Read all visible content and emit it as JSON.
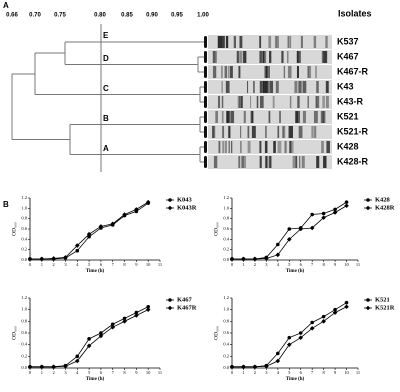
{
  "panel_a": {
    "label": "A",
    "scale_ticks": [
      "0.66",
      "0.70",
      "0.75",
      "0.80",
      "0.85",
      "0.90",
      "0.95",
      "1.00"
    ],
    "nodes": [
      "E",
      "D",
      "C",
      "B",
      "A"
    ],
    "isolates_header": "Isolates",
    "isolates": [
      "K537",
      "K467",
      "K467-R",
      "K43",
      "K43-R",
      "K521",
      "K521-R",
      "K428",
      "K428-R"
    ]
  },
  "panel_b_label": "B",
  "chart_data": [
    {
      "type": "line",
      "x_label": "Time (h)",
      "y_label": "OD₆₀₀",
      "x": [
        0,
        1,
        2,
        3,
        4,
        5,
        6,
        7,
        8,
        9,
        10
      ],
      "xlim": [
        0,
        11
      ],
      "xticks": [
        0,
        1,
        2,
        3,
        4,
        5,
        6,
        7,
        8,
        9,
        10,
        11
      ],
      "ylim": [
        0,
        1.2
      ],
      "yticks": [
        {
          "value": 0,
          "label": "0.0"
        },
        0.2,
        0.4,
        0.6,
        0.8,
        {
          "value": 1,
          "label": "1.0"
        },
        1.2
      ],
      "series": [
        {
          "name": "K043",
          "color": "#000000",
          "marker": "circle",
          "values": [
            0.02,
            0.02,
            0.02,
            0.04,
            0.18,
            0.45,
            0.62,
            0.68,
            0.86,
            0.94,
            1.1
          ]
        },
        {
          "name": "K043R",
          "color": "#000000",
          "marker": "diamond",
          "values": [
            0.02,
            0.02,
            0.03,
            0.05,
            0.28,
            0.5,
            0.65,
            0.7,
            0.88,
            0.98,
            1.12
          ]
        }
      ]
    },
    {
      "type": "line",
      "x_label": "Time (h)",
      "y_label": "OD₆₀₀",
      "x": [
        0,
        1,
        2,
        3,
        4,
        5,
        6,
        7,
        8,
        9,
        10
      ],
      "xlim": [
        0,
        11
      ],
      "xticks": [
        0,
        1,
        2,
        3,
        4,
        5,
        6,
        7,
        8,
        9,
        10,
        11
      ],
      "ylim": [
        0,
        1.2
      ],
      "yticks": [
        {
          "value": 0,
          "label": "0.0"
        },
        0.2,
        0.4,
        0.6,
        0.8,
        {
          "value": 1,
          "label": "1.0"
        },
        1.2
      ],
      "series": [
        {
          "name": "K428",
          "color": "#000000",
          "marker": "circle",
          "values": [
            0.02,
            0.02,
            0.02,
            0.05,
            0.3,
            0.6,
            0.62,
            0.88,
            0.9,
            0.98,
            1.12
          ]
        },
        {
          "name": "K428R",
          "color": "#000000",
          "marker": "diamond",
          "values": [
            0.02,
            0.02,
            0.02,
            0.03,
            0.1,
            0.4,
            0.6,
            0.62,
            0.82,
            0.92,
            1.05
          ]
        }
      ]
    },
    {
      "type": "line",
      "x_label": "Time (h)",
      "y_label": "OD₆₀₀",
      "x": [
        0,
        1,
        2,
        3,
        4,
        5,
        6,
        7,
        8,
        9,
        10
      ],
      "xlim": [
        0,
        11
      ],
      "xticks": [
        0,
        1,
        2,
        3,
        4,
        5,
        6,
        7,
        8,
        9,
        10,
        11
      ],
      "ylim": [
        0,
        1.2
      ],
      "yticks": [
        {
          "value": 0,
          "label": "0.0"
        },
        0.2,
        0.4,
        0.6,
        0.8,
        {
          "value": 1,
          "label": "1.0"
        },
        1.2
      ],
      "series": [
        {
          "name": "K467",
          "color": "#000000",
          "marker": "circle",
          "values": [
            0.02,
            0.02,
            0.02,
            0.04,
            0.2,
            0.5,
            0.6,
            0.75,
            0.85,
            0.95,
            1.05
          ]
        },
        {
          "name": "K467R",
          "color": "#000000",
          "marker": "diamond",
          "values": [
            0.02,
            0.02,
            0.02,
            0.03,
            0.12,
            0.38,
            0.55,
            0.7,
            0.8,
            0.9,
            1.0
          ]
        }
      ]
    },
    {
      "type": "line",
      "x_label": "Time (h)",
      "y_label": "OD₆₀₀",
      "x": [
        0,
        1,
        2,
        3,
        4,
        5,
        6,
        7,
        8,
        9,
        10
      ],
      "xlim": [
        0,
        11
      ],
      "xticks": [
        0,
        1,
        2,
        3,
        4,
        5,
        6,
        7,
        8,
        9,
        10,
        11
      ],
      "ylim": [
        0,
        1.2
      ],
      "yticks": [
        {
          "value": 0,
          "label": "0.0"
        },
        0.2,
        0.4,
        0.6,
        0.8,
        {
          "value": 1,
          "label": "1.0"
        },
        1.2
      ],
      "series": [
        {
          "name": "K521",
          "color": "#000000",
          "marker": "circle",
          "values": [
            0.02,
            0.02,
            0.02,
            0.04,
            0.25,
            0.52,
            0.6,
            0.78,
            0.88,
            1.0,
            1.12
          ]
        },
        {
          "name": "K521R",
          "color": "#000000",
          "marker": "diamond",
          "values": [
            0.02,
            0.02,
            0.02,
            0.03,
            0.12,
            0.4,
            0.52,
            0.68,
            0.8,
            0.95,
            1.05
          ]
        }
      ]
    }
  ]
}
